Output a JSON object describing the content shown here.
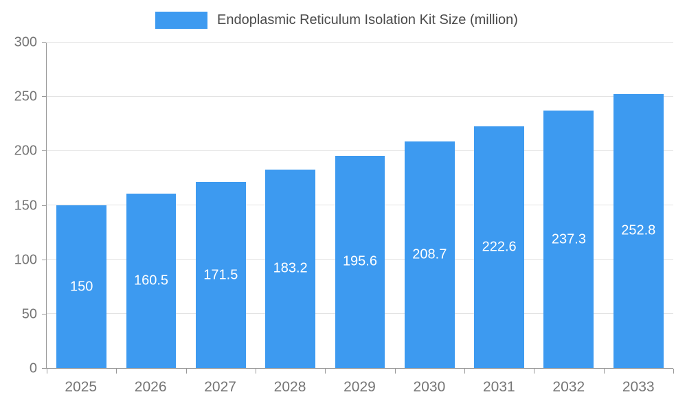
{
  "colors": {
    "bar": "#3D9AF0",
    "bar_label": "#FFFFFF",
    "axis_text": "#757575",
    "legend_text": "#4A4A4A",
    "gridline": "#E3E3E3",
    "axis_line": "#999999",
    "background": "#FFFFFF"
  },
  "chart_data": {
    "type": "bar",
    "title": "Endoplasmic Reticulum Isolation Kit Size (million)",
    "categories": [
      "2025",
      "2026",
      "2027",
      "2028",
      "2029",
      "2030",
      "2031",
      "2032",
      "2033"
    ],
    "values": [
      150,
      160.5,
      171.5,
      183.2,
      195.6,
      208.7,
      222.6,
      237.3,
      252.8
    ],
    "value_labels": [
      "150",
      "160.5",
      "171.5",
      "183.2",
      "195.6",
      "208.7",
      "222.6",
      "237.3",
      "252.8"
    ],
    "xlabel": "",
    "ylabel": "",
    "ylim": [
      0,
      300
    ],
    "yticks": [
      0,
      50,
      100,
      150,
      200,
      250,
      300
    ],
    "grid": "horizontal",
    "legend_position": "top"
  }
}
